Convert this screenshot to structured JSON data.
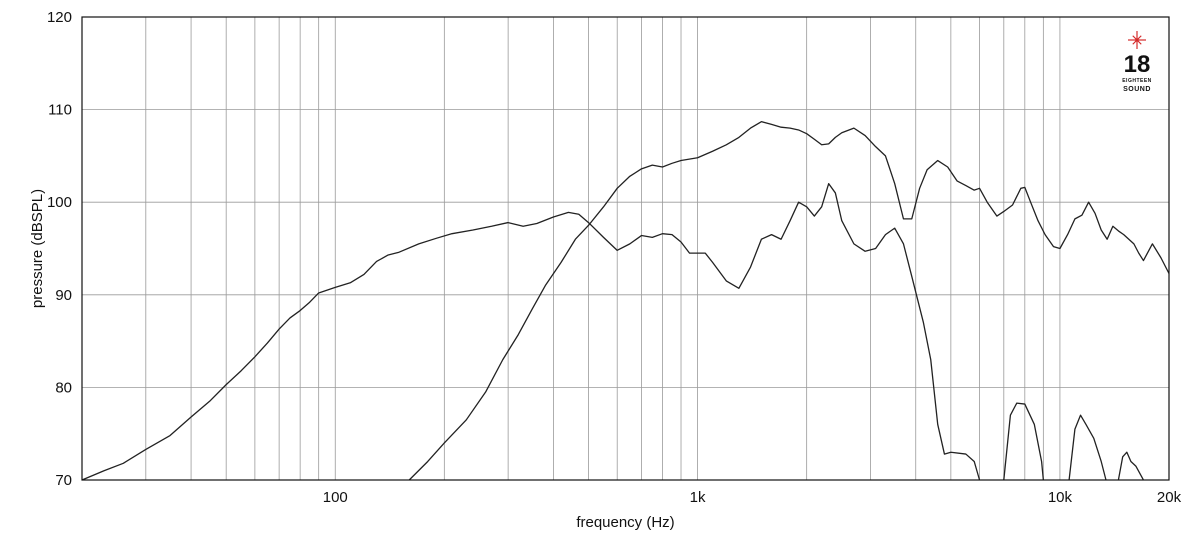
{
  "chart_data": {
    "type": "line",
    "xlabel": "frequency (Hz)",
    "ylabel": "pressure (dBSPL)",
    "x_scale": "log",
    "xlim": [
      20,
      20000
    ],
    "ylim": [
      70,
      120
    ],
    "x_ticks": [
      {
        "value": 100,
        "label": "100"
      },
      {
        "value": 1000,
        "label": "1k"
      },
      {
        "value": 10000,
        "label": "10k"
      },
      {
        "value": 20000,
        "label": "20k"
      }
    ],
    "y_ticks": [
      {
        "value": 70,
        "label": "70"
      },
      {
        "value": 80,
        "label": "80"
      },
      {
        "value": 90,
        "label": "90"
      },
      {
        "value": 100,
        "label": "100"
      },
      {
        "value": 110,
        "label": "110"
      },
      {
        "value": 120,
        "label": "120"
      }
    ],
    "grid": true,
    "series": [
      {
        "color": "#222222",
        "points": [
          [
            20,
            70.0
          ],
          [
            23,
            71.0
          ],
          [
            26,
            71.8
          ],
          [
            30,
            73.3
          ],
          [
            35,
            74.8
          ],
          [
            40,
            76.8
          ],
          [
            45,
            78.5
          ],
          [
            50,
            80.3
          ],
          [
            55,
            81.8
          ],
          [
            60,
            83.3
          ],
          [
            65,
            84.8
          ],
          [
            70,
            86.3
          ],
          [
            75,
            87.5
          ],
          [
            80,
            88.3
          ],
          [
            85,
            89.2
          ],
          [
            90,
            90.2
          ],
          [
            100,
            90.8
          ],
          [
            110,
            91.3
          ],
          [
            120,
            92.2
          ],
          [
            130,
            93.6
          ],
          [
            140,
            94.3
          ],
          [
            150,
            94.6
          ],
          [
            170,
            95.5
          ],
          [
            190,
            96.1
          ],
          [
            210,
            96.6
          ],
          [
            240,
            97.0
          ],
          [
            270,
            97.4
          ],
          [
            300,
            97.8
          ],
          [
            330,
            97.4
          ],
          [
            360,
            97.7
          ],
          [
            400,
            98.4
          ],
          [
            440,
            98.9
          ],
          [
            470,
            98.7
          ],
          [
            500,
            97.8
          ],
          [
            550,
            96.2
          ],
          [
            600,
            94.8
          ],
          [
            650,
            95.5
          ],
          [
            700,
            96.4
          ],
          [
            750,
            96.2
          ],
          [
            800,
            96.6
          ],
          [
            850,
            96.5
          ],
          [
            900,
            95.7
          ],
          [
            950,
            94.5
          ],
          [
            1000,
            94.5
          ],
          [
            1050,
            94.5
          ],
          [
            1100,
            93.5
          ],
          [
            1200,
            91.5
          ],
          [
            1300,
            90.7
          ],
          [
            1400,
            93.0
          ],
          [
            1500,
            96.0
          ],
          [
            1600,
            96.5
          ],
          [
            1700,
            96.0
          ],
          [
            1800,
            98.0
          ],
          [
            1900,
            100.0
          ],
          [
            2000,
            99.5
          ],
          [
            2100,
            98.5
          ],
          [
            2200,
            99.5
          ],
          [
            2300,
            102.0
          ],
          [
            2400,
            101.0
          ],
          [
            2500,
            98.0
          ],
          [
            2700,
            95.5
          ],
          [
            2900,
            94.7
          ],
          [
            3100,
            95.0
          ],
          [
            3300,
            96.5
          ],
          [
            3500,
            97.2
          ],
          [
            3700,
            95.5
          ],
          [
            3900,
            92.0
          ],
          [
            4200,
            87.0
          ],
          [
            4400,
            83.0
          ],
          [
            4600,
            76.0
          ],
          [
            4800,
            72.8
          ],
          [
            5000,
            73.0
          ],
          [
            5500,
            72.8
          ],
          [
            5800,
            72.0
          ],
          [
            6000,
            70.0
          ]
        ],
        "segments_extra": [
          [
            [
              7000,
              70.0
            ],
            [
              7300,
              77.0
            ],
            [
              7600,
              78.3
            ],
            [
              8000,
              78.2
            ],
            [
              8500,
              76.0
            ],
            [
              8900,
              72.0
            ],
            [
              9000,
              70.0
            ]
          ],
          [
            [
              10600,
              70.0
            ],
            [
              11000,
              75.5
            ],
            [
              11400,
              77.0
            ],
            [
              11800,
              76.0
            ],
            [
              12400,
              74.5
            ],
            [
              13000,
              72.0
            ],
            [
              13400,
              70.0
            ]
          ],
          [
            [
              14500,
              70.0
            ],
            [
              14900,
              72.5
            ],
            [
              15300,
              73.0
            ],
            [
              15700,
              72.0
            ],
            [
              16200,
              71.5
            ],
            [
              17000,
              70.0
            ]
          ]
        ]
      },
      {
        "color": "#222222",
        "points": [
          [
            160,
            70.0
          ],
          [
            180,
            72.0
          ],
          [
            200,
            74.0
          ],
          [
            230,
            76.5
          ],
          [
            260,
            79.5
          ],
          [
            290,
            83.0
          ],
          [
            320,
            85.7
          ],
          [
            350,
            88.5
          ],
          [
            380,
            91.0
          ],
          [
            420,
            93.5
          ],
          [
            460,
            96.0
          ],
          [
            500,
            97.5
          ],
          [
            550,
            99.5
          ],
          [
            600,
            101.5
          ],
          [
            650,
            102.8
          ],
          [
            700,
            103.6
          ],
          [
            750,
            104.0
          ],
          [
            800,
            103.8
          ],
          [
            850,
            104.2
          ],
          [
            900,
            104.5
          ],
          [
            1000,
            104.8
          ],
          [
            1100,
            105.5
          ],
          [
            1200,
            106.2
          ],
          [
            1300,
            107.0
          ],
          [
            1400,
            108.0
          ],
          [
            1500,
            108.7
          ],
          [
            1600,
            108.4
          ],
          [
            1700,
            108.1
          ],
          [
            1800,
            108.0
          ],
          [
            1900,
            107.8
          ],
          [
            2000,
            107.4
          ],
          [
            2100,
            106.8
          ],
          [
            2200,
            106.2
          ],
          [
            2300,
            106.3
          ],
          [
            2400,
            107.0
          ],
          [
            2500,
            107.5
          ],
          [
            2700,
            108.0
          ],
          [
            2900,
            107.2
          ],
          [
            3100,
            106.0
          ],
          [
            3300,
            105.0
          ],
          [
            3500,
            102.0
          ],
          [
            3700,
            98.2
          ],
          [
            3900,
            98.2
          ],
          [
            4100,
            101.5
          ],
          [
            4300,
            103.5
          ],
          [
            4600,
            104.5
          ],
          [
            4900,
            103.8
          ],
          [
            5200,
            102.3
          ],
          [
            5500,
            101.8
          ],
          [
            5800,
            101.3
          ],
          [
            6000,
            101.5
          ],
          [
            6300,
            100.0
          ],
          [
            6700,
            98.5
          ],
          [
            7000,
            99.0
          ],
          [
            7400,
            99.7
          ],
          [
            7800,
            101.5
          ],
          [
            8000,
            101.6
          ],
          [
            8300,
            100.0
          ],
          [
            8700,
            98.0
          ],
          [
            9100,
            96.5
          ],
          [
            9600,
            95.2
          ],
          [
            10000,
            95.0
          ],
          [
            10500,
            96.5
          ],
          [
            11000,
            98.2
          ],
          [
            11500,
            98.6
          ],
          [
            12000,
            100.0
          ],
          [
            12500,
            98.8
          ],
          [
            13000,
            97.0
          ],
          [
            13500,
            96.0
          ],
          [
            14000,
            97.4
          ],
          [
            14500,
            96.9
          ],
          [
            15000,
            96.5
          ],
          [
            16000,
            95.5
          ],
          [
            16500,
            94.5
          ],
          [
            17000,
            93.7
          ],
          [
            18000,
            95.5
          ],
          [
            19000,
            94.0
          ],
          [
            20000,
            92.3
          ]
        ]
      }
    ]
  },
  "brand": {
    "number": "18",
    "line1": "EIGHTEEN",
    "line2": "SOUND",
    "accent": "#d42a2a"
  }
}
